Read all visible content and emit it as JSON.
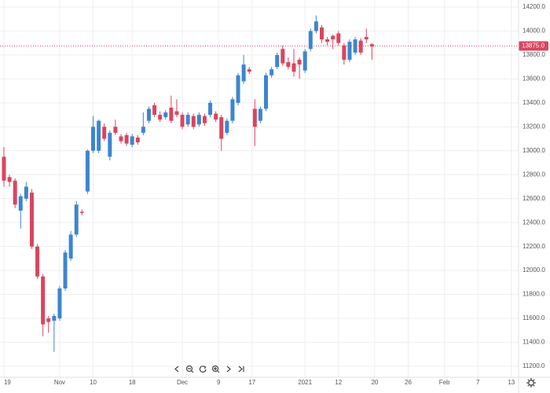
{
  "chart_data": {
    "type": "candlestick",
    "up_color": "#3d85d1",
    "down_color": "#d9455f",
    "grid": true,
    "x": [
      0,
      1,
      2,
      3,
      4,
      5,
      6,
      7,
      8,
      9,
      10,
      11,
      12,
      13,
      14,
      15,
      16,
      17,
      18,
      19,
      20,
      21,
      22,
      23,
      24,
      25,
      26,
      27,
      28,
      29,
      30,
      31,
      32,
      33,
      34,
      35,
      36,
      37,
      38,
      39,
      40,
      41,
      42,
      43,
      44,
      45,
      46,
      47,
      48,
      49,
      50,
      51,
      52,
      53,
      54,
      55,
      56,
      57,
      58,
      59,
      60,
      61,
      62,
      63,
      64,
      65,
      66
    ],
    "open": [
      12950,
      12780,
      12750,
      12500,
      12600,
      12650,
      12200,
      11950,
      11600,
      11580,
      11600,
      11850,
      12100,
      12300,
      12490,
      12660,
      13000,
      13000,
      13200,
      12950,
      13200,
      13120,
      13130,
      13050,
      13110,
      13150,
      13250,
      13380,
      13300,
      13280,
      13360,
      13330,
      13300,
      13220,
      13290,
      13220,
      13290,
      13300,
      13310,
      13280,
      13150,
      13250,
      13400,
      13580,
      13680,
      13350,
      13250,
      13350,
      13630,
      13700,
      13850,
      13740,
      13730,
      13760,
      13670,
      13850,
      14000,
      14030,
      13930,
      13960,
      13980,
      13880,
      13760,
      13820,
      13920,
      13950,
      13890
    ],
    "high": [
      13030,
      12800,
      12770,
      12640,
      12740,
      12680,
      12220,
      11970,
      11620,
      11640,
      11870,
      12170,
      12330,
      12580,
      12510,
      13010,
      13290,
      13260,
      13230,
      13170,
      13260,
      13140,
      13150,
      13140,
      13130,
      13320,
      13370,
      13400,
      13330,
      13340,
      13460,
      13430,
      13320,
      13320,
      13310,
      13320,
      13310,
      13420,
      13330,
      13300,
      13270,
      13450,
      13650,
      13800,
      13700,
      13430,
      13370,
      13650,
      13700,
      13820,
      13880,
      13780,
      13850,
      13780,
      13850,
      14020,
      14130,
      14050,
      13950,
      13970,
      14000,
      13900,
      13930,
      13950,
      13940,
      14020,
      13900
    ],
    "low": [
      12700,
      12700,
      12520,
      12350,
      12580,
      12180,
      11930,
      11450,
      11480,
      11320,
      11580,
      11830,
      12080,
      12280,
      12460,
      12640,
      12980,
      12980,
      13080,
      12920,
      13130,
      13060,
      13040,
      13030,
      13050,
      13130,
      13230,
      13280,
      13240,
      13260,
      13230,
      13280,
      13180,
      13200,
      13180,
      13200,
      13210,
      13280,
      13240,
      13000,
      13130,
      13230,
      13380,
      13560,
      13640,
      13040,
      13230,
      13330,
      13610,
      13680,
      13710,
      13680,
      13620,
      13600,
      13650,
      13830,
      13980,
      13900,
      13880,
      13850,
      13880,
      13720,
      13740,
      13800,
      13800,
      13900,
      13760
    ],
    "close": [
      12750,
      12740,
      12550,
      12620,
      12700,
      12200,
      11950,
      11550,
      11570,
      11620,
      11850,
      12150,
      12300,
      12550,
      12480,
      13000,
      13200,
      13250,
      13100,
      13150,
      13150,
      13080,
      13060,
      13120,
      13070,
      13200,
      13350,
      13300,
      13260,
      13320,
      13250,
      13300,
      13200,
      13300,
      13200,
      13300,
      13230,
      13400,
      13260,
      13100,
      13250,
      13430,
      13630,
      13720,
      13660,
      13200,
      13350,
      13630,
      13680,
      13800,
      13730,
      13700,
      13660,
      13720,
      13830,
      14000,
      14080,
      13930,
      13910,
      13930,
      13900,
      13760,
      13910,
      13930,
      13820,
      13930,
      13870
    ],
    "xlim": [
      -0.7,
      92.3
    ],
    "xticks": [
      {
        "value": 0,
        "label": "19"
      },
      {
        "value": 10,
        "label": "Nov"
      },
      {
        "value": 16,
        "label": "10"
      },
      {
        "value": 23,
        "label": "18"
      },
      {
        "value": 32,
        "label": "Dec"
      },
      {
        "value": 38.5,
        "label": "9"
      },
      {
        "value": 44.5,
        "label": "17"
      },
      {
        "value": 54,
        "label": "2021"
      },
      {
        "value": 60,
        "label": "12"
      },
      {
        "value": 66.5,
        "label": "20"
      },
      {
        "value": 72.5,
        "label": "26"
      },
      {
        "value": 79,
        "label": "Feb"
      },
      {
        "value": 85,
        "label": "7"
      },
      {
        "value": 91,
        "label": "13"
      }
    ],
    "ylim": [
      11108,
      14259
    ],
    "yticks": [
      {
        "value": 11200,
        "label": "11200.0"
      },
      {
        "value": 11400,
        "label": "11400.0"
      },
      {
        "value": 11600,
        "label": "11600.0"
      },
      {
        "value": 11800,
        "label": "11800.0"
      },
      {
        "value": 12000,
        "label": "12000.0"
      },
      {
        "value": 12200,
        "label": "12200.0"
      },
      {
        "value": 12400,
        "label": "12400.0"
      },
      {
        "value": 12600,
        "label": "12600.0"
      },
      {
        "value": 12800,
        "label": "12800.0"
      },
      {
        "value": 13000,
        "label": "13000.0"
      },
      {
        "value": 13200,
        "label": "13200.0"
      },
      {
        "value": 13400,
        "label": "13400.0"
      },
      {
        "value": 13600,
        "label": "13600.0"
      },
      {
        "value": 13800,
        "label": "13800.0"
      },
      {
        "value": 14000,
        "label": "14000.0"
      },
      {
        "value": 14200,
        "label": "14200.0"
      }
    ],
    "price_line": {
      "value": 13875,
      "label": "13875.0",
      "color": "#d9455f"
    }
  }
}
